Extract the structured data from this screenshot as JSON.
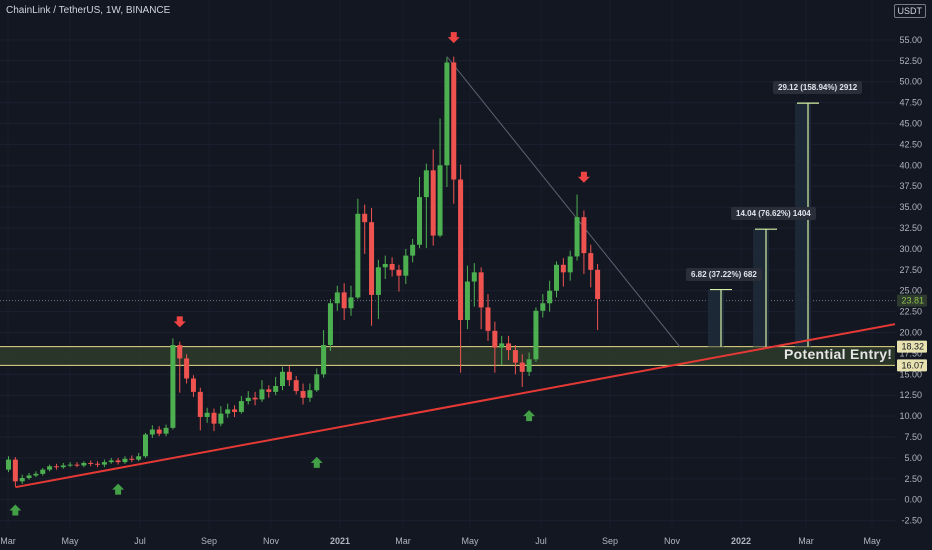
{
  "header": {
    "title": "ChainLink / TetherUS, 1W, BINANCE",
    "currency_label": "USDT"
  },
  "chart_data": {
    "type": "candlestick",
    "title": "ChainLink / TetherUS, 1W, BINANCE",
    "ylim": [
      -3.5,
      57.5
    ],
    "y_ticks": [
      -2.5,
      0,
      2.5,
      5,
      7.5,
      10,
      12.5,
      15,
      17.5,
      20,
      22.5,
      25,
      27.5,
      30,
      32.5,
      35,
      37.5,
      40,
      42.5,
      45,
      47.5,
      50,
      52.5,
      55
    ],
    "y_tick_labels": [
      "-2.50",
      "0.00",
      "2.50",
      "5.00",
      "7.50",
      "10.00",
      "12.50",
      "15.00",
      "17.50",
      "20.00",
      "22.50",
      "25.00",
      "27.50",
      "30.00",
      "32.50",
      "35.00",
      "37.50",
      "40.00",
      "42.50",
      "45.00",
      "47.50",
      "50.00",
      "52.50",
      "55.00"
    ],
    "x_ticks": [
      "Mar",
      "May",
      "Jul",
      "Sep",
      "Nov",
      "2021",
      "Mar",
      "May",
      "Jul",
      "Sep",
      "Nov",
      "2022",
      "Mar",
      "May"
    ],
    "x_tick_bold": [
      false,
      false,
      false,
      false,
      false,
      true,
      false,
      false,
      false,
      false,
      false,
      true,
      false,
      false
    ],
    "candles": [
      [
        3.6,
        4.8,
        5.2,
        3.3
      ],
      [
        4.8,
        2.2,
        5.1,
        1.6
      ],
      [
        2.2,
        2.6,
        3.0,
        1.9
      ],
      [
        2.6,
        2.9,
        3.2,
        2.4
      ],
      [
        2.9,
        3.1,
        3.4,
        2.7
      ],
      [
        3.1,
        3.6,
        3.8,
        2.9
      ],
      [
        3.6,
        4.0,
        4.2,
        3.4
      ],
      [
        4.0,
        3.9,
        4.3,
        3.6
      ],
      [
        3.9,
        4.1,
        4.4,
        3.7
      ],
      [
        4.1,
        4.2,
        4.5,
        3.9
      ],
      [
        4.2,
        4.1,
        4.5,
        3.9
      ],
      [
        4.1,
        4.4,
        4.6,
        3.9
      ],
      [
        4.4,
        4.3,
        4.7,
        4.0
      ],
      [
        4.3,
        4.2,
        4.6,
        3.9
      ],
      [
        4.2,
        4.5,
        4.8,
        3.9
      ],
      [
        4.5,
        4.7,
        5.0,
        4.3
      ],
      [
        4.7,
        4.5,
        5.0,
        4.2
      ],
      [
        4.5,
        4.9,
        5.2,
        4.3
      ],
      [
        4.9,
        4.8,
        5.3,
        4.5
      ],
      [
        4.8,
        5.2,
        5.6,
        4.6
      ],
      [
        5.2,
        7.8,
        8.0,
        5.0
      ],
      [
        7.8,
        8.4,
        8.9,
        7.4
      ],
      [
        8.4,
        7.9,
        8.8,
        7.6
      ],
      [
        7.9,
        8.6,
        9.0,
        7.6
      ],
      [
        8.6,
        18.5,
        19.3,
        8.4
      ],
      [
        18.5,
        16.9,
        18.9,
        12.8
      ],
      [
        16.9,
        14.5,
        17.4,
        13.9
      ],
      [
        14.5,
        12.9,
        14.9,
        12.3
      ],
      [
        12.9,
        9.9,
        13.4,
        8.3
      ],
      [
        9.9,
        10.4,
        11.0,
        9.2
      ],
      [
        10.4,
        9.1,
        10.9,
        8.2
      ],
      [
        9.1,
        10.3,
        11.2,
        8.8
      ],
      [
        10.3,
        10.8,
        11.5,
        9.8
      ],
      [
        10.8,
        10.5,
        11.3,
        9.9
      ],
      [
        10.5,
        11.8,
        12.4,
        10.3
      ],
      [
        11.8,
        12.2,
        13.0,
        11.4
      ],
      [
        12.2,
        12.0,
        12.9,
        11.3
      ],
      [
        12.0,
        13.2,
        14.3,
        11.7
      ],
      [
        13.2,
        12.9,
        13.7,
        12.2
      ],
      [
        12.9,
        13.6,
        14.7,
        12.5
      ],
      [
        13.6,
        15.3,
        15.9,
        13.1
      ],
      [
        15.3,
        14.3,
        16.0,
        13.6
      ],
      [
        14.3,
        13.0,
        14.8,
        12.6
      ],
      [
        13.0,
        12.2,
        13.9,
        11.4
      ],
      [
        12.2,
        13.1,
        13.9,
        11.7
      ],
      [
        13.1,
        15.0,
        15.7,
        12.9
      ],
      [
        15.0,
        18.5,
        20.3,
        14.6
      ],
      [
        18.5,
        23.5,
        24.0,
        17.8
      ],
      [
        23.5,
        24.8,
        25.6,
        22.6
      ],
      [
        24.8,
        22.9,
        25.9,
        21.5
      ],
      [
        22.9,
        24.2,
        25.6,
        22.0
      ],
      [
        24.2,
        34.2,
        36.0,
        24.0
      ],
      [
        34.2,
        33.2,
        35.3,
        29.4
      ],
      [
        33.2,
        24.5,
        34.9,
        20.8
      ],
      [
        24.5,
        27.8,
        28.7,
        21.6
      ],
      [
        27.8,
        28.2,
        29.2,
        26.4
      ],
      [
        28.2,
        27.5,
        29.0,
        26.7
      ],
      [
        27.5,
        26.8,
        28.1,
        24.9
      ],
      [
        26.8,
        29.2,
        30.0,
        25.8
      ],
      [
        29.2,
        30.5,
        31.2,
        28.4
      ],
      [
        30.5,
        36.2,
        38.6,
        30.1
      ],
      [
        36.2,
        39.4,
        40.2,
        30.1
      ],
      [
        39.4,
        31.6,
        41.9,
        30.4
      ],
      [
        31.6,
        40.0,
        45.6,
        31.4
      ],
      [
        40.0,
        52.3,
        52.9,
        37.4
      ],
      [
        52.3,
        38.3,
        53.0,
        35.4
      ],
      [
        38.3,
        21.5,
        40.1,
        15.2
      ],
      [
        21.5,
        26.1,
        28.0,
        20.4
      ],
      [
        26.1,
        27.2,
        28.3,
        23.1
      ],
      [
        27.2,
        23.0,
        27.8,
        20.4
      ],
      [
        23.0,
        20.2,
        24.6,
        19.0
      ],
      [
        20.2,
        18.2,
        21.3,
        15.2
      ],
      [
        18.2,
        18.7,
        19.6,
        16.1
      ],
      [
        18.7,
        17.9,
        19.6,
        16.7
      ],
      [
        17.9,
        16.4,
        18.5,
        15.0
      ],
      [
        16.4,
        15.3,
        17.4,
        13.5
      ],
      [
        15.3,
        16.8,
        17.6,
        14.8
      ],
      [
        16.8,
        22.6,
        23.0,
        16.5
      ],
      [
        22.6,
        23.5,
        24.6,
        21.8
      ],
      [
        23.5,
        25.0,
        26.2,
        22.5
      ],
      [
        25.0,
        28.1,
        28.5,
        24.2
      ],
      [
        28.1,
        27.2,
        28.9,
        25.5
      ],
      [
        27.2,
        29.1,
        29.8,
        26.2
      ],
      [
        29.1,
        33.8,
        36.5,
        28.6
      ],
      [
        33.8,
        29.5,
        34.6,
        27.0
      ],
      [
        29.5,
        27.5,
        30.5,
        25.4
      ],
      [
        27.5,
        24.0,
        28.2,
        20.3
      ]
    ],
    "resistance_levels": [
      {
        "value": 18.32,
        "label": "18.32"
      },
      {
        "value": 16.07,
        "label": "16.07"
      }
    ],
    "current_price": {
      "value": 23.81,
      "label": "23.81"
    },
    "trendline_support": {
      "from": {
        "candle": 1,
        "price": 1.5
      },
      "to": {
        "x": "May 2022",
        "price": 21.0
      }
    },
    "trendline_resistance": {
      "from": {
        "candle": 64,
        "price": 53.0
      },
      "to": {
        "candle": 98,
        "price": 18.3
      }
    },
    "targets": [
      {
        "label": "6.82 (37.22%) 682",
        "from": 18.32,
        "to": 25.14
      },
      {
        "label": "14.04 (76.62%) 1404",
        "from": 18.32,
        "to": 32.36
      },
      {
        "label": "29.12 (158.94%) 2912",
        "from": 18.32,
        "to": 47.44
      }
    ],
    "markers_down": [
      {
        "candle": 25,
        "price": 20.5
      },
      {
        "candle": 65,
        "price": 54.5
      },
      {
        "candle": 84,
        "price": 37.8
      }
    ],
    "markers_up": [
      {
        "candle": 1,
        "price": 0.5
      },
      {
        "candle": 16,
        "price": 3.0
      },
      {
        "candle": 45,
        "price": 6.2
      },
      {
        "candle": 76,
        "price": 11.8
      }
    ],
    "annotation": "Potential Entry!",
    "colors": {
      "up": "#26a69a",
      "up_body": "#4caf50",
      "down": "#ef5350",
      "support": "#e53935",
      "zone": "#2e3b2a",
      "zone_line": "#e8d984",
      "target": "#d4f1a5"
    }
  }
}
